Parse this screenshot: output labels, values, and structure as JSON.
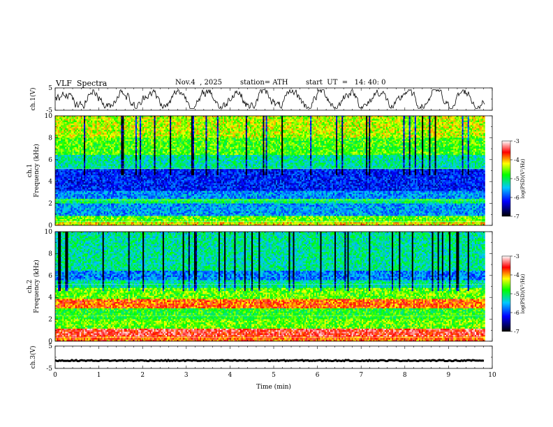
{
  "header": {
    "title": "VLF  Spectra",
    "date": "Nov.4  , 2025",
    "station": "station= ATH",
    "start_ut": "start  UT  =   14: 40: 0"
  },
  "chart_data": [
    {
      "id": "ch1-waveform",
      "type": "line",
      "ylabel": "ch.1(V)",
      "ylim": [
        -5,
        5
      ],
      "yticks": [
        5,
        -5
      ],
      "description_style": "noisy waveform oscillating roughly between -4 and 4 V"
    },
    {
      "id": "ch1-spectrogram",
      "type": "heatmap",
      "ylabel": "ch.1\nFrequency  (kHz)",
      "ylabel_lines": [
        "ch.1",
        "Frequency  (kHz)"
      ],
      "ylim": [
        0,
        10
      ],
      "yticks": [
        0,
        2,
        4,
        6,
        8,
        10
      ],
      "colorbar": {
        "label": "log(PSD)(V²/Hz)",
        "range": [
          -7,
          -3
        ],
        "ticks": [
          -3,
          -4,
          -5,
          -6,
          -7
        ]
      }
    },
    {
      "id": "ch2-spectrogram",
      "type": "heatmap",
      "ylabel": "ch.2\nFrequency  (kHz)",
      "ylabel_lines": [
        "ch.2",
        "Frequency  (kHz)"
      ],
      "ylim": [
        0,
        10
      ],
      "yticks": [
        0,
        2,
        4,
        6,
        8,
        10
      ],
      "colorbar": {
        "label": "log(PSD)(V²/Hz)",
        "range": [
          -7,
          -3
        ],
        "ticks": [
          -3,
          -4,
          -5,
          -6,
          -7
        ]
      }
    },
    {
      "id": "ch3-waveform",
      "type": "line",
      "ylabel": "ch.3(V)",
      "ylim": [
        -5,
        5
      ],
      "yticks": [
        5,
        -5
      ],
      "values_approx": "nearly constant near -1.5 V"
    }
  ],
  "xaxis": {
    "xlabel": "Time  (min)",
    "xlim": [
      0,
      10
    ],
    "xticks": [
      0,
      1,
      2,
      3,
      4,
      5,
      6,
      7,
      8,
      9,
      10
    ],
    "data_end": 9.83
  },
  "colors": {
    "scale": [
      "#000000",
      "#0000ff",
      "#00c8ff",
      "#00ff00",
      "#ffff00",
      "#ff0000",
      "#ffffff"
    ]
  }
}
